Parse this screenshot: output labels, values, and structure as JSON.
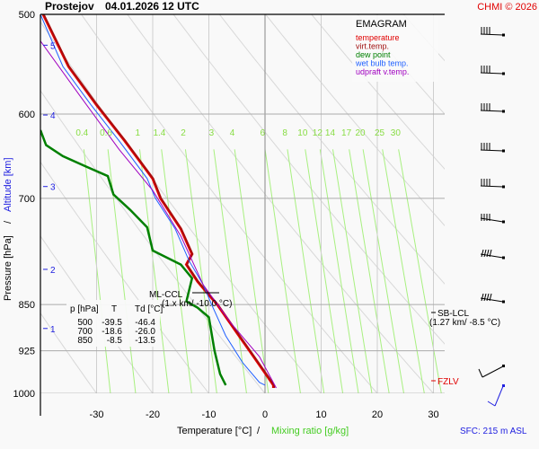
{
  "header": {
    "station": "Prostejov",
    "datetime": "04.01.2026 12 UTC",
    "copyright": "CHMI © 2026"
  },
  "legend": {
    "title": "EMAGRAM",
    "items": [
      {
        "label": "temperature",
        "color": "#e00000"
      },
      {
        "label": "virt.temp.",
        "color": "#a01010"
      },
      {
        "label": "dew point",
        "color": "#008000"
      },
      {
        "label": "wet bulb temp.",
        "color": "#2060ff"
      },
      {
        "label": "udpraft v.temp.",
        "color": "#a000c0"
      }
    ]
  },
  "table": {
    "headers": [
      "p [hPa]",
      "T",
      "Td [°C]"
    ],
    "rows": [
      [
        "500",
        "-39.5",
        "-46.4"
      ],
      [
        "700",
        "-18.6",
        "-26.0"
      ],
      [
        "850",
        "-8.5",
        "-13.5"
      ]
    ]
  },
  "annotations": {
    "ml_ccl": "ML-CCL",
    "ml_ccl_value": "(1.x km/ -10.0 °C)",
    "sb_lcl": "SB-LCL",
    "sb_lcl_value": "(1.27 km/ -8.5 °C)",
    "fzlv": "FZLV",
    "sfc": "SFC: 215 m ASL"
  },
  "chart_data": {
    "type": "line",
    "title": "Prostejov 04.01.2026 12 UTC",
    "subtitle": "EMAGRAM",
    "xlabel": "Temperature [°C]",
    "xlabel2": "Mixing ratio [g/kg]",
    "ylabel": "Pressure [hPa]",
    "ylabel2": "Altitude [km]",
    "xlim": [
      -40,
      35
    ],
    "ylim": [
      1000,
      500
    ],
    "x_ticks": [
      -30,
      -20,
      -10,
      0,
      10,
      20,
      30
    ],
    "pressure_ticks": [
      500,
      600,
      700,
      850,
      925,
      1000
    ],
    "altitude_ticks": [
      {
        "km": 1,
        "p": 888
      },
      {
        "km": 2,
        "p": 797
      },
      {
        "km": 3,
        "p": 685
      },
      {
        "km": 4,
        "p": 601
      },
      {
        "km": 5,
        "p": 529
      }
    ],
    "mixing_ratio_labels": [
      "0.4",
      "0.6",
      "1",
      "1.4",
      "2",
      "3",
      "4",
      "6",
      "8",
      "10",
      "12",
      "14",
      "17",
      "20",
      "25",
      "30"
    ],
    "series": [
      {
        "name": "temperature",
        "color": "#e00000",
        "points": [
          [
            -39.5,
            500
          ],
          [
            -35,
            550
          ],
          [
            -30,
            590
          ],
          [
            -25,
            630
          ],
          [
            -20,
            675
          ],
          [
            -18.6,
            700
          ],
          [
            -15,
            740
          ],
          [
            -13,
            775
          ],
          [
            -14,
            790
          ],
          [
            -12,
            815
          ],
          [
            -10,
            835
          ],
          [
            -8.5,
            850
          ],
          [
            -5,
            895
          ],
          [
            -2,
            935
          ],
          [
            0.5,
            970
          ],
          [
            1.5,
            985
          ],
          [
            1.5,
            990
          ]
        ]
      },
      {
        "name": "virt.temp.",
        "color": "#a01010",
        "points": [
          [
            -39.4,
            500
          ],
          [
            -34.9,
            550
          ],
          [
            -29.9,
            590
          ],
          [
            -24.9,
            630
          ],
          [
            -19.9,
            675
          ],
          [
            -18.5,
            700
          ],
          [
            -14.9,
            740
          ],
          [
            -12.9,
            775
          ],
          [
            -13.9,
            790
          ],
          [
            -11.9,
            815
          ],
          [
            -9.9,
            835
          ],
          [
            -8.4,
            850
          ],
          [
            -4.9,
            895
          ],
          [
            -1.9,
            935
          ],
          [
            0.6,
            970
          ],
          [
            1.6,
            985
          ],
          [
            1.7,
            990
          ]
        ]
      },
      {
        "name": "dew point",
        "color": "#008000",
        "points": [
          [
            -40,
            618
          ],
          [
            -39,
            635
          ],
          [
            -36,
            648
          ],
          [
            -32,
            660
          ],
          [
            -28,
            672
          ],
          [
            -27,
            695
          ],
          [
            -24,
            715
          ],
          [
            -21,
            738
          ],
          [
            -20,
            770
          ],
          [
            -15,
            790
          ],
          [
            -13,
            810
          ],
          [
            -14,
            845
          ],
          [
            -12,
            855
          ],
          [
            -10,
            870
          ],
          [
            -9,
            925
          ],
          [
            -8,
            965
          ],
          [
            -7,
            985
          ]
        ]
      },
      {
        "name": "wet bulb temp.",
        "color": "#2060ff",
        "points": [
          [
            -40,
            500
          ],
          [
            -36,
            550
          ],
          [
            -31,
            590
          ],
          [
            -26,
            630
          ],
          [
            -21,
            675
          ],
          [
            -19.5,
            700
          ],
          [
            -16,
            740
          ],
          [
            -13.5,
            785
          ],
          [
            -11,
            820
          ],
          [
            -9.5,
            850
          ],
          [
            -7,
            900
          ],
          [
            -4,
            945
          ],
          [
            -1,
            980
          ],
          [
            0,
            985
          ]
        ]
      },
      {
        "name": "udpraft v.temp.",
        "color": "#a000c0",
        "points": [
          [
            -40,
            525
          ],
          [
            -33,
            580
          ],
          [
            -26,
            640
          ],
          [
            -20,
            690
          ],
          [
            -15,
            750
          ],
          [
            -11,
            820
          ],
          [
            -6,
            880
          ],
          [
            -1,
            935
          ],
          [
            2,
            990
          ]
        ]
      }
    ],
    "wind_barbs_levels_hpa": [
      525,
      580,
      630,
      690,
      750,
      800,
      850,
      905,
      960,
      995
    ]
  }
}
